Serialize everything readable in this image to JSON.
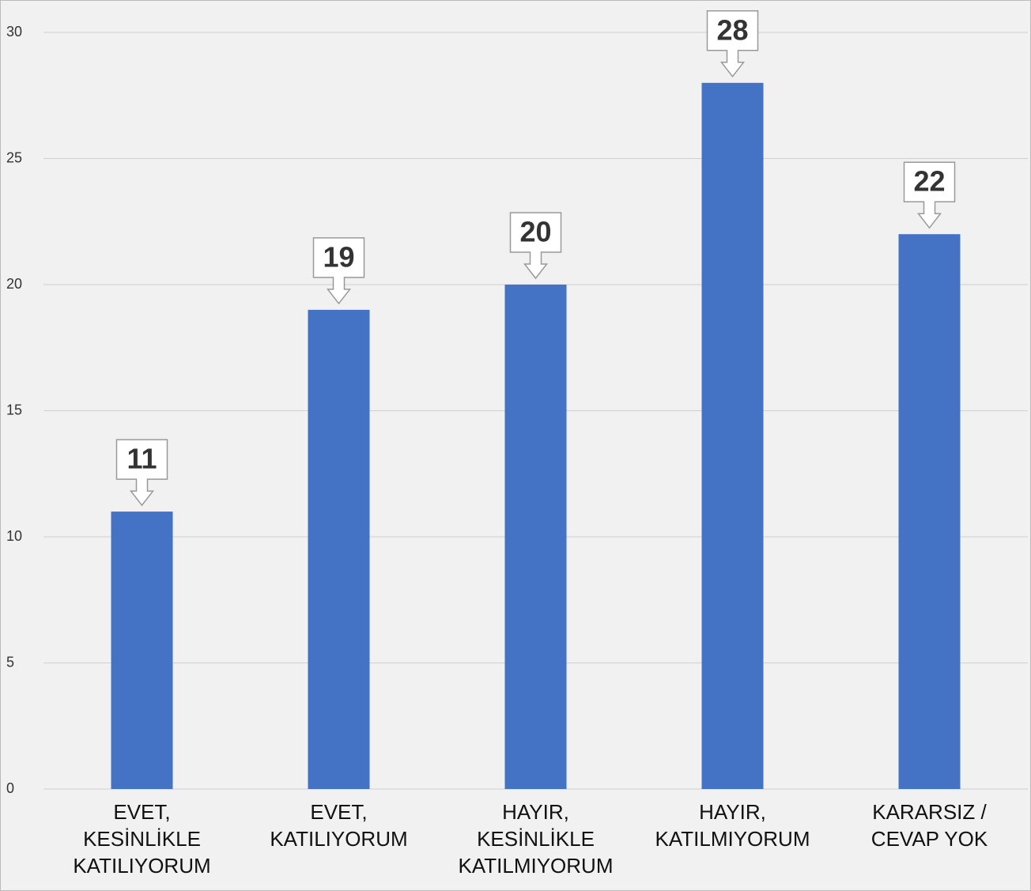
{
  "chart_data": {
    "type": "bar",
    "categories": [
      "EVET,\nKESİNLİKLE\nKATILIYORUM",
      "EVET,\nKATILIYORUM",
      "HAYIR,\nKESİNLİKLE\nKATILMIYORUM",
      "HAYIR,\nKATILMIYORUM",
      "KARARSIZ /\nCEVAP YOK"
    ],
    "values": [
      11,
      19,
      20,
      28,
      22
    ],
    "color": "#4472c4",
    "ylim": [
      0,
      30
    ],
    "yticks": [
      0,
      5,
      10,
      15,
      20,
      25,
      30
    ],
    "grid": true
  }
}
